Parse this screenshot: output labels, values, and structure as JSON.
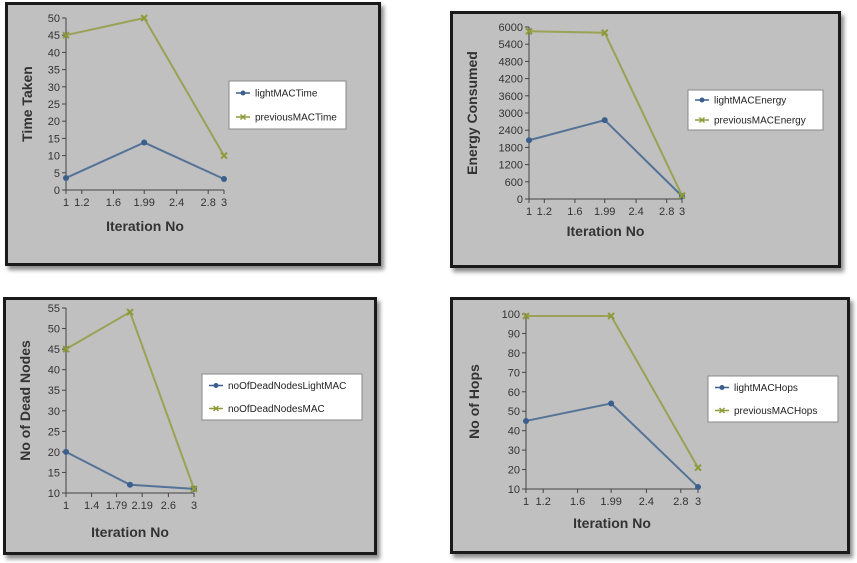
{
  "chart_data": [
    {
      "type": "line",
      "xlabel": "Iteration No",
      "ylabel": "Time Taken",
      "xticks": [
        "1",
        "1.2",
        "1.6",
        "1.99",
        "2.4",
        "2.8",
        "3"
      ],
      "xtick_values": [
        1,
        1.2,
        1.6,
        1.99,
        2.4,
        2.8,
        3
      ],
      "xlim": [
        1,
        3
      ],
      "yticks": [
        0,
        5,
        10,
        15,
        20,
        25,
        30,
        35,
        40,
        45,
        50
      ],
      "ylim": [
        0,
        50
      ],
      "legend_position": "right",
      "series": [
        {
          "name": "lightMACTime",
          "x": [
            1,
            1.99,
            3
          ],
          "values": [
            3.5,
            13.8,
            3.2
          ],
          "color": "#3a5f8c",
          "marker": "circle"
        },
        {
          "name": "previousMACTime",
          "x": [
            1,
            1.99,
            3
          ],
          "values": [
            45,
            50,
            10
          ],
          "color": "#8f9a3a",
          "marker": "x"
        }
      ]
    },
    {
      "type": "line",
      "xlabel": "Iteration No",
      "ylabel": "Energy Consumed",
      "xticks": [
        "1",
        "1.2",
        "1.6",
        "1.99",
        "2.4",
        "2.8",
        "3"
      ],
      "xtick_values": [
        1,
        1.2,
        1.6,
        1.99,
        2.4,
        2.8,
        3
      ],
      "xlim": [
        1,
        3
      ],
      "yticks": [
        0,
        600,
        1200,
        1800,
        2400,
        3000,
        3600,
        4200,
        4800,
        5400,
        6000
      ],
      "ylim": [
        0,
        6000
      ],
      "legend_position": "right",
      "series": [
        {
          "name": "lightMACEnergy",
          "x": [
            1,
            1.99,
            3
          ],
          "values": [
            2050,
            2750,
            100
          ],
          "color": "#3a5f8c",
          "marker": "circle"
        },
        {
          "name": "previousMACEnergy",
          "x": [
            1,
            1.99,
            3
          ],
          "values": [
            5850,
            5800,
            120
          ],
          "color": "#8f9a3a",
          "marker": "x"
        }
      ]
    },
    {
      "type": "line",
      "xlabel": "Iteration No",
      "ylabel": "No of Dead Nodes",
      "xticks": [
        "1",
        "1.4",
        "1.79",
        "2.19",
        "2.6",
        "3"
      ],
      "xtick_values": [
        1,
        1.4,
        1.79,
        2.19,
        2.6,
        3
      ],
      "xlim": [
        1,
        3
      ],
      "yticks": [
        10,
        15,
        20,
        25,
        30,
        35,
        40,
        45,
        50,
        55
      ],
      "ylim": [
        10,
        55
      ],
      "legend_position": "right",
      "series": [
        {
          "name": "noOfDeadNodesLightMAC",
          "x": [
            1,
            2,
            3
          ],
          "values": [
            20,
            12,
            11
          ],
          "color": "#3a5f8c",
          "marker": "circle"
        },
        {
          "name": "noOfDeadNodesMAC",
          "x": [
            1,
            2,
            3
          ],
          "values": [
            45,
            54,
            11
          ],
          "color": "#8f9a3a",
          "marker": "x"
        }
      ]
    },
    {
      "type": "line",
      "xlabel": "Iteration No",
      "ylabel": "No of Hops",
      "xticks": [
        "1",
        "1.2",
        "1.6",
        "1.99",
        "2.4",
        "2.8",
        "3"
      ],
      "xtick_values": [
        1,
        1.2,
        1.6,
        1.99,
        2.4,
        2.8,
        3
      ],
      "xlim": [
        1,
        3
      ],
      "yticks": [
        10,
        20,
        30,
        40,
        50,
        60,
        70,
        80,
        90,
        100
      ],
      "ylim": [
        10,
        100
      ],
      "legend_position": "right",
      "series": [
        {
          "name": "lightMACHops",
          "x": [
            1,
            1.99,
            3
          ],
          "values": [
            45,
            54,
            11
          ],
          "color": "#3a5f8c",
          "marker": "circle"
        },
        {
          "name": "previousMACHops",
          "x": [
            1,
            1.99,
            3
          ],
          "values": [
            99,
            99,
            21
          ],
          "color": "#8f9a3a",
          "marker": "x"
        }
      ]
    }
  ]
}
